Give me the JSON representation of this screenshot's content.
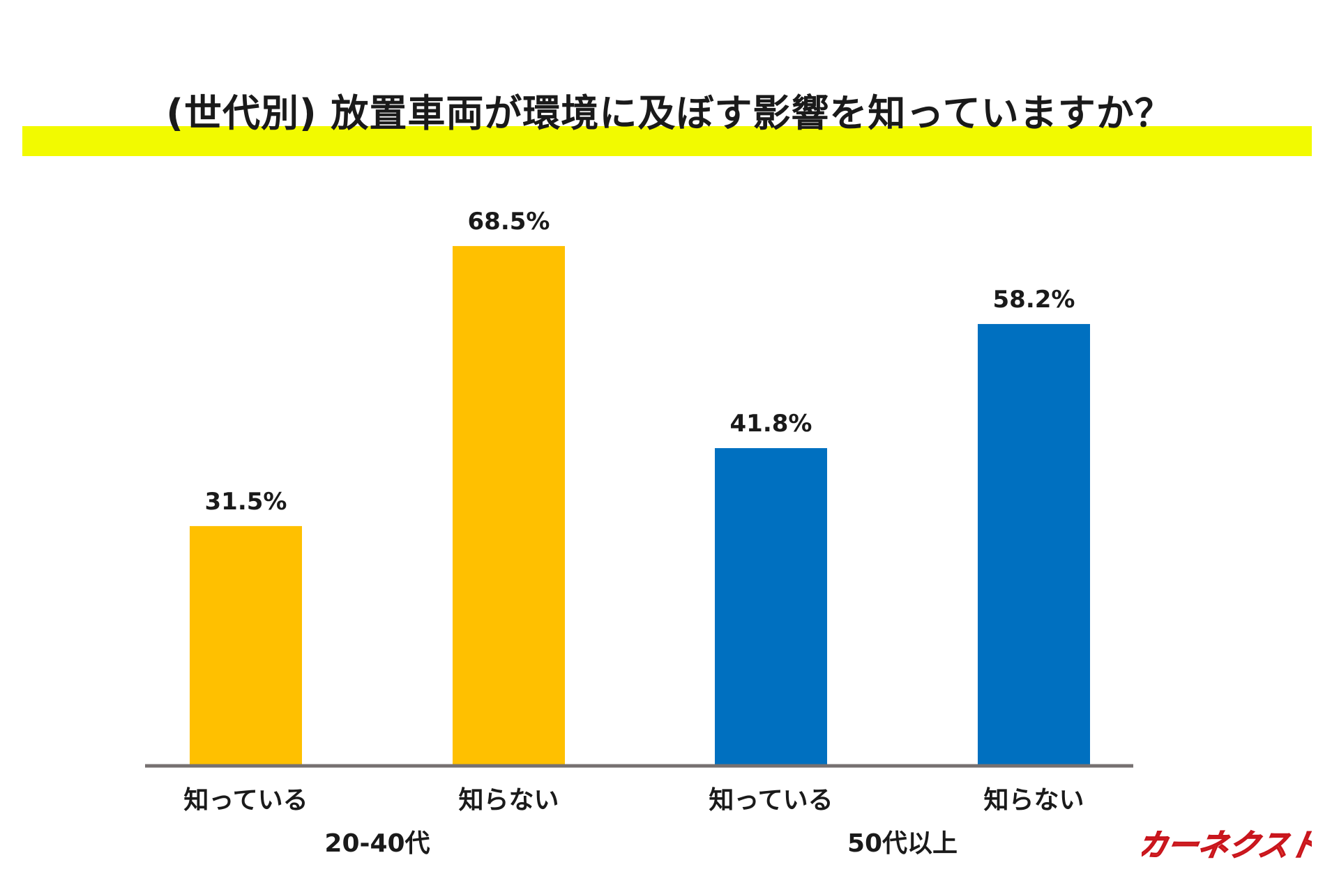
{
  "title": "(世代別) 放置車両が環境に及ぼす影響を知っていますか？",
  "title_highlight_color": "#F2FA00",
  "logo_text": "カーネクスト",
  "chart_data": {
    "type": "bar",
    "title": "(世代別) 放置車両が環境に及ぼす影響を知っていますか？",
    "xlabel": "",
    "ylabel": "",
    "ylim": [
      0,
      100
    ],
    "grid": false,
    "value_suffix": "%",
    "groups": [
      {
        "name": "20-40代",
        "color": "#FFC000",
        "categories": [
          "知っている",
          "知らない"
        ],
        "values": [
          31.5,
          68.5
        ],
        "labels": [
          "31.5%",
          "68.5%"
        ]
      },
      {
        "name": "50代以上",
        "color": "#0070C0",
        "categories": [
          "知っている",
          "知らない"
        ],
        "values": [
          41.8,
          58.2
        ],
        "labels": [
          "41.8%",
          "58.2%"
        ]
      }
    ],
    "axis_color": "#767171"
  }
}
